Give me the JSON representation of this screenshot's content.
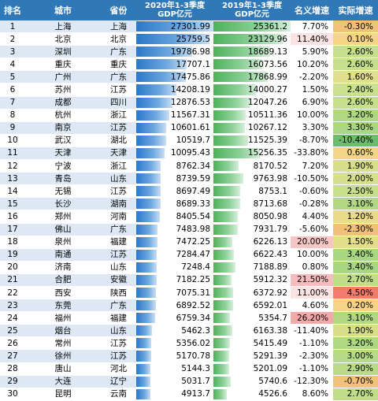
{
  "headers": {
    "rank": "排名",
    "city": "城市",
    "province": "省份",
    "gdp2020": "2020年1-3季度GDP亿元",
    "gdp2019": "2019年1-3季度GDP亿元",
    "nominal": "名义增速",
    "real": "实际增速"
  },
  "colors": {
    "header_bg": "#2f79b9",
    "bar_2020": "#2b78c8",
    "bar_2019": "#4db25a"
  },
  "rows": [
    {
      "rank": "1",
      "city": "上海",
      "province": "上海",
      "gdp2020": "27301.99",
      "gdp2019": "25361.2",
      "nominal": "7.70%",
      "real": "-0.30%",
      "nominal_color": "#ffffff",
      "real_color": "#f3c27a"
    },
    {
      "rank": "2",
      "city": "北京",
      "province": "北京",
      "gdp2020": "25759.5",
      "gdp2019": "23129.96",
      "nominal": "11.40%",
      "real": "0.10%",
      "nominal_color": "#fbe3e3",
      "real_color": "#f6d486"
    },
    {
      "rank": "3",
      "city": "深圳",
      "province": "广东",
      "gdp2020": "19786.98",
      "gdp2019": "18689.13",
      "nominal": "5.90%",
      "real": "2.60%",
      "nominal_color": "#ffffff",
      "real_color": "#c5df8a"
    },
    {
      "rank": "4",
      "city": "重庆",
      "province": "重庆",
      "gdp2020": "17707.1",
      "gdp2019": "16073.56",
      "nominal": "10.20%",
      "real": "2.60%",
      "nominal_color": "#ffffff",
      "real_color": "#c5df8a"
    },
    {
      "rank": "5",
      "city": "广州",
      "province": "广东",
      "gdp2020": "17475.86",
      "gdp2019": "17868.99",
      "nominal": "-2.20%",
      "real": "1.60%",
      "nominal_color": "#ffffff",
      "real_color": "#e0e08c"
    },
    {
      "rank": "6",
      "city": "苏州",
      "province": "江苏",
      "gdp2020": "14208.19",
      "gdp2019": "14000.27",
      "nominal": "1.50%",
      "real": "2.40%",
      "nominal_color": "#ffffff",
      "real_color": "#cbe08a"
    },
    {
      "rank": "7",
      "city": "成都",
      "province": "四川",
      "gdp2020": "12876.53",
      "gdp2019": "12047.26",
      "nominal": "6.90%",
      "real": "2.60%",
      "nominal_color": "#ffffff",
      "real_color": "#c5df8a"
    },
    {
      "rank": "8",
      "city": "杭州",
      "province": "浙江",
      "gdp2020": "11567.31",
      "gdp2019": "10511.36",
      "nominal": "10.00%",
      "real": "3.20%",
      "nominal_color": "#ffffff",
      "real_color": "#afd884"
    },
    {
      "rank": "9",
      "city": "南京",
      "province": "江苏",
      "gdp2020": "10601.61",
      "gdp2019": "10267.12",
      "nominal": "3.30%",
      "real": "3.30%",
      "nominal_color": "#ffffff",
      "real_color": "#abd683"
    },
    {
      "rank": "10",
      "city": "武汉",
      "province": "湖北",
      "gdp2020": "10519.7",
      "gdp2019": "11525.39",
      "nominal": "-8.70%",
      "real": "-10.40%",
      "nominal_color": "#ffffff",
      "real_color": "#6dbb6d"
    },
    {
      "rank": "11",
      "city": "天津",
      "province": "天津",
      "gdp2020": "10095.43",
      "gdp2019": "15256.35",
      "nominal": "-33.80%",
      "real": "0.60%",
      "nominal_color": "#ffffff",
      "real_color": "#f2d686"
    },
    {
      "rank": "12",
      "city": "宁波",
      "province": "浙江",
      "gdp2020": "8762.34",
      "gdp2019": "8170.52",
      "nominal": "7.20%",
      "real": "1.90%",
      "nominal_color": "#ffffff",
      "real_color": "#d8df8a"
    },
    {
      "rank": "13",
      "city": "青岛",
      "province": "山东",
      "gdp2020": "8739.59",
      "gdp2019": "9763.98",
      "nominal": "-10.50%",
      "real": "2.00%",
      "nominal_color": "#ffffff",
      "real_color": "#d6df8a"
    },
    {
      "rank": "14",
      "city": "无锡",
      "province": "江苏",
      "gdp2020": "8697.49",
      "gdp2019": "8753.1",
      "nominal": "-0.60%",
      "real": "2.50%",
      "nominal_color": "#ffffff",
      "real_color": "#c8df8a"
    },
    {
      "rank": "15",
      "city": "长沙",
      "province": "湖南",
      "gdp2020": "8689.33",
      "gdp2019": "8713.68",
      "nominal": "-0.28%",
      "real": "3.10%",
      "nominal_color": "#ffffff",
      "real_color": "#b2d884"
    },
    {
      "rank": "16",
      "city": "郑州",
      "province": "河南",
      "gdp2020": "8405.54",
      "gdp2019": "8050.98",
      "nominal": "4.40%",
      "real": "1.20%",
      "nominal_color": "#ffffff",
      "real_color": "#e8dc88"
    },
    {
      "rank": "17",
      "city": "佛山",
      "province": "广东",
      "gdp2020": "7483.98",
      "gdp2019": "7931.79",
      "nominal": "-5.60%",
      "real": "-2.30%",
      "nominal_color": "#ffffff",
      "real_color": "#f0c078"
    },
    {
      "rank": "18",
      "city": "泉州",
      "province": "福建",
      "gdp2020": "7472.25",
      "gdp2019": "6226.13",
      "nominal": "20.00%",
      "real": "1.50%",
      "nominal_color": "#f6c6c6",
      "real_color": "#e2de8a"
    },
    {
      "rank": "19",
      "city": "南通",
      "province": "江苏",
      "gdp2020": "7284.47",
      "gdp2019": "6622.43",
      "nominal": "10.00%",
      "real": "3.40%",
      "nominal_color": "#ffffff",
      "real_color": "#a8d683"
    },
    {
      "rank": "20",
      "city": "济南",
      "province": "山东",
      "gdp2020": "7248.4",
      "gdp2019": "7188.89",
      "nominal": "0.80%",
      "real": "3.40%",
      "nominal_color": "#ffffff",
      "real_color": "#a8d683"
    },
    {
      "rank": "21",
      "city": "合肥",
      "province": "安徽",
      "gdp2020": "7182.25",
      "gdp2019": "5912.32",
      "nominal": "21.50%",
      "real": "2.70%",
      "nominal_color": "#f4bcbc",
      "real_color": "#c0dd88"
    },
    {
      "rank": "22",
      "city": "西安",
      "province": "陕西",
      "gdp2020": "7075.31",
      "gdp2019": "6372.92",
      "nominal": "11.00%",
      "real": "4.50%",
      "nominal_color": "#fbe3e3",
      "real_color": "#f47a6e"
    },
    {
      "rank": "23",
      "city": "东莞",
      "province": "广东",
      "gdp2020": "6892.52",
      "gdp2019": "6592.01",
      "nominal": "4.60%",
      "real": "0.20%",
      "nominal_color": "#ffffff",
      "real_color": "#f5d486"
    },
    {
      "rank": "24",
      "city": "福州",
      "province": "福建",
      "gdp2020": "6759.34",
      "gdp2019": "5354.7",
      "nominal": "26.20%",
      "real": "3.10%",
      "nominal_color": "#f2a9a9",
      "real_color": "#b2d884"
    },
    {
      "rank": "25",
      "city": "烟台",
      "province": "山东",
      "gdp2020": "5462.3",
      "gdp2019": "6163.38",
      "nominal": "-11.40%",
      "real": "1.90%",
      "nominal_color": "#ffffff",
      "real_color": "#d8df8a"
    },
    {
      "rank": "26",
      "city": "常州",
      "province": "江苏",
      "gdp2020": "5356.02",
      "gdp2019": "5415.49",
      "nominal": "-1.10%",
      "real": "3.20%",
      "nominal_color": "#ffffff",
      "real_color": "#afd884"
    },
    {
      "rank": "27",
      "city": "徐州",
      "province": "江苏",
      "gdp2020": "5170.78",
      "gdp2019": "5291.39",
      "nominal": "-2.30%",
      "real": "3.00%",
      "nominal_color": "#ffffff",
      "real_color": "#b6da86"
    },
    {
      "rank": "28",
      "city": "唐山",
      "province": "河北",
      "gdp2020": "5144.3",
      "gdp2019": "5201.09",
      "nominal": "-1.10%",
      "real": "2.90%",
      "nominal_color": "#ffffff",
      "real_color": "#badb86"
    },
    {
      "rank": "29",
      "city": "大连",
      "province": "辽宁",
      "gdp2020": "5031.7",
      "gdp2019": "5740.6",
      "nominal": "-12.30%",
      "real": "-0.70%",
      "nominal_color": "#ffffff",
      "real_color": "#f2c27a"
    },
    {
      "rank": "30",
      "city": "昆明",
      "province": "云南",
      "gdp2020": "4913.7",
      "gdp2019": "4526.6",
      "nominal": "8.60%",
      "real": "2.70%",
      "nominal_color": "#ffffff",
      "real_color": "#c0dd88"
    }
  ]
}
